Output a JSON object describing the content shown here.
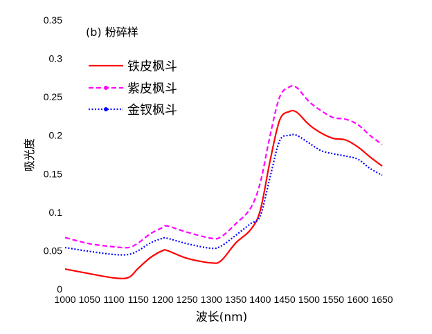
{
  "chart_data": {
    "type": "line",
    "title": "(b) 粉碎样",
    "xlabel": "波长(nm)",
    "ylabel": "吸光度",
    "xlim": [
      1000,
      1650
    ],
    "ylim": [
      0,
      0.35
    ],
    "xticks": [
      1000,
      1050,
      1100,
      1150,
      1200,
      1250,
      1300,
      1350,
      1400,
      1450,
      1500,
      1550,
      1600,
      1650
    ],
    "xtick_labels": [
      "1000",
      "1050",
      "1100",
      "1150",
      "1200",
      "1250",
      "1300",
      "1350",
      "1400",
      "1450",
      "1500",
      "1550",
      "1600",
      "1650"
    ],
    "yticks": [
      0,
      0.05,
      0.1,
      0.15,
      0.2,
      0.25,
      0.3,
      0.35
    ],
    "ytick_labels": [
      "0",
      "0.05",
      "0.1",
      "0.15",
      "0.2",
      "0.25",
      "0.3",
      "0.35"
    ],
    "grid": false,
    "legend_position": "top-left",
    "x": [
      1000,
      1050,
      1100,
      1130,
      1150,
      1175,
      1200,
      1210,
      1250,
      1300,
      1320,
      1350,
      1380,
      1400,
      1420,
      1440,
      1460,
      1475,
      1500,
      1525,
      1550,
      1575,
      1600,
      1625,
      1650
    ],
    "series": [
      {
        "name": "铁皮枫斗",
        "color": "#ff0000",
        "style": "solid",
        "values": [
          0.026,
          0.02,
          0.0145,
          0.015,
          0.027,
          0.041,
          0.05,
          0.05,
          0.04,
          0.034,
          0.037,
          0.06,
          0.077,
          0.102,
          0.166,
          0.22,
          0.231,
          0.23,
          0.214,
          0.203,
          0.196,
          0.194,
          0.185,
          0.172,
          0.16
        ]
      },
      {
        "name": "紫皮枫斗",
        "color": "#ff00ff",
        "style": "dashed",
        "values": [
          0.067,
          0.059,
          0.055,
          0.054,
          0.06,
          0.072,
          0.08,
          0.082,
          0.074,
          0.066,
          0.068,
          0.085,
          0.105,
          0.138,
          0.199,
          0.25,
          0.263,
          0.262,
          0.244,
          0.232,
          0.223,
          0.221,
          0.214,
          0.2,
          0.188
        ]
      },
      {
        "name": "金钗枫斗",
        "color": "#0000ff",
        "style": "dotted",
        "values": [
          0.054,
          0.049,
          0.045,
          0.045,
          0.05,
          0.06,
          0.066,
          0.066,
          0.059,
          0.053,
          0.056,
          0.07,
          0.085,
          0.095,
          0.145,
          0.193,
          0.2,
          0.2,
          0.19,
          0.18,
          0.176,
          0.173,
          0.169,
          0.157,
          0.148
        ]
      }
    ]
  }
}
